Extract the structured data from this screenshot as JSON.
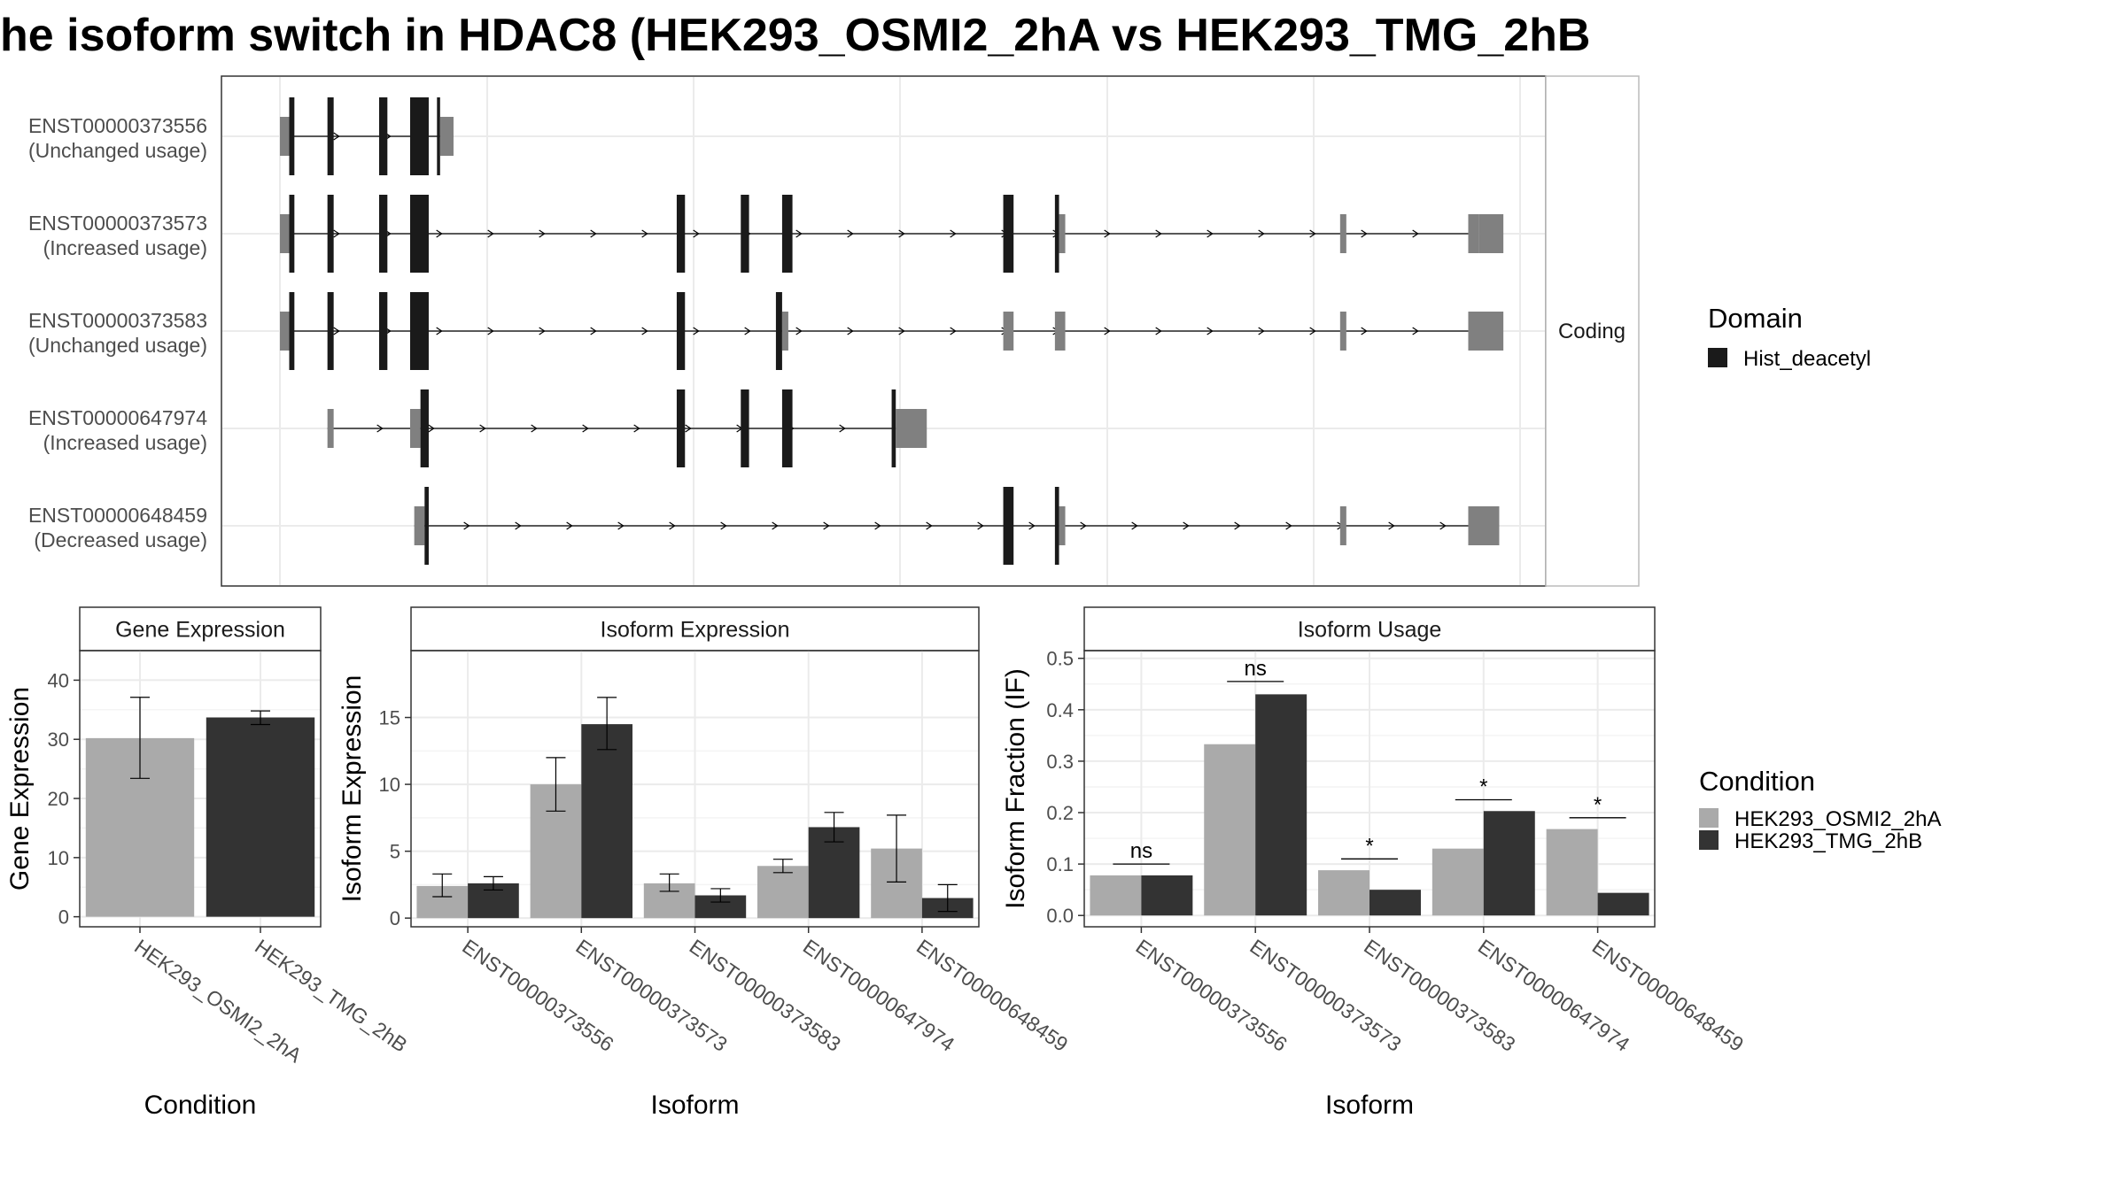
{
  "title": "he isoform switch in HDAC8 (HEK293_OSMI2_2hA vs HEK293_TMG_2hB",
  "colors": {
    "osmi": "#aaaaaa",
    "tmg": "#333333",
    "domain": "#1a1a1a",
    "utr": "#808080",
    "grid": "#ebebeb",
    "panel_border": "#333333",
    "strip_fill": "#ffffff"
  },
  "structure": {
    "facet_label": "Coding",
    "genome_ticks": [
      0,
      1,
      2,
      3,
      4,
      5,
      6
    ],
    "isoforms": [
      {
        "id": "ENST00000373556",
        "usage": "(Unchanged usage)",
        "span": [
          0.2,
          8.4
        ],
        "features": [
          {
            "s": 0.0,
            "e": 0.45,
            "k": "utr"
          },
          {
            "s": 0.45,
            "e": 0.7,
            "k": "cds"
          },
          {
            "s": 2.3,
            "e": 2.6,
            "k": "cds"
          },
          {
            "s": 4.8,
            "e": 5.2,
            "k": "cds"
          },
          {
            "s": 6.3,
            "e": 7.2,
            "k": "cds"
          },
          {
            "s": 7.6,
            "e": 7.75,
            "k": "cds"
          },
          {
            "s": 7.75,
            "e": 8.4,
            "k": "utr"
          }
        ]
      },
      {
        "id": "ENST00000373573",
        "usage": "(Increased usage)",
        "span": [
          0.2,
          57.5
        ],
        "features": [
          {
            "s": 0.0,
            "e": 0.45,
            "k": "utr"
          },
          {
            "s": 0.45,
            "e": 0.7,
            "k": "cds"
          },
          {
            "s": 2.3,
            "e": 2.6,
            "k": "cds"
          },
          {
            "s": 4.8,
            "e": 5.2,
            "k": "cds"
          },
          {
            "s": 6.3,
            "e": 7.2,
            "k": "cds"
          },
          {
            "s": 19.2,
            "e": 19.6,
            "k": "cds"
          },
          {
            "s": 22.3,
            "e": 22.7,
            "k": "cds"
          },
          {
            "s": 24.3,
            "e": 24.8,
            "k": "cds"
          },
          {
            "s": 35.0,
            "e": 35.5,
            "k": "cds"
          },
          {
            "s": 37.5,
            "e": 37.7,
            "k": "cds"
          },
          {
            "s": 37.7,
            "e": 38.0,
            "k": "utr"
          },
          {
            "s": 51.3,
            "e": 51.6,
            "k": "utr"
          },
          {
            "s": 57.5,
            "e": 58.0,
            "k": "utr"
          },
          {
            "s": 58.0,
            "e": 59.2,
            "k": "utr"
          }
        ]
      },
      {
        "id": "ENST00000373583",
        "usage": "(Unchanged usage)",
        "span": [
          0.2,
          57.5
        ],
        "features": [
          {
            "s": 0.0,
            "e": 0.45,
            "k": "utr"
          },
          {
            "s": 0.45,
            "e": 0.7,
            "k": "cds"
          },
          {
            "s": 2.3,
            "e": 2.6,
            "k": "cds"
          },
          {
            "s": 4.8,
            "e": 5.2,
            "k": "cds"
          },
          {
            "s": 6.3,
            "e": 7.2,
            "k": "cds"
          },
          {
            "s": 19.2,
            "e": 19.6,
            "k": "cds"
          },
          {
            "s": 24.0,
            "e": 24.3,
            "k": "cds"
          },
          {
            "s": 24.3,
            "e": 24.6,
            "k": "utr"
          },
          {
            "s": 35.0,
            "e": 35.5,
            "k": "utr"
          },
          {
            "s": 37.5,
            "e": 38.0,
            "k": "utr"
          },
          {
            "s": 51.3,
            "e": 51.6,
            "k": "utr"
          },
          {
            "s": 57.5,
            "e": 59.2,
            "k": "utr"
          }
        ]
      },
      {
        "id": "ENST00000647974",
        "usage": "(Increased usage)",
        "span": [
          2.3,
          29.8
        ],
        "features": [
          {
            "s": 2.3,
            "e": 2.6,
            "k": "utr"
          },
          {
            "s": 6.3,
            "e": 6.8,
            "k": "utr"
          },
          {
            "s": 6.8,
            "e": 7.2,
            "k": "cds"
          },
          {
            "s": 19.2,
            "e": 19.6,
            "k": "cds"
          },
          {
            "s": 22.3,
            "e": 22.7,
            "k": "cds"
          },
          {
            "s": 24.3,
            "e": 24.8,
            "k": "cds"
          },
          {
            "s": 29.6,
            "e": 29.8,
            "k": "cds"
          },
          {
            "s": 29.8,
            "e": 31.3,
            "k": "utr"
          }
        ]
      },
      {
        "id": "ENST00000648459",
        "usage": "(Decreased usage)",
        "span": [
          6.5,
          57.5
        ],
        "features": [
          {
            "s": 6.5,
            "e": 7.0,
            "k": "utr"
          },
          {
            "s": 7.0,
            "e": 7.2,
            "k": "cds"
          },
          {
            "s": 35.0,
            "e": 35.5,
            "k": "cds"
          },
          {
            "s": 37.5,
            "e": 37.7,
            "k": "cds"
          },
          {
            "s": 37.7,
            "e": 38.0,
            "k": "utr"
          },
          {
            "s": 51.3,
            "e": 51.6,
            "k": "utr"
          },
          {
            "s": 57.5,
            "e": 59.0,
            "k": "utr"
          }
        ]
      }
    ]
  },
  "domain_legend": {
    "title": "Domain",
    "items": [
      {
        "label": "Hist_deacetyl"
      }
    ]
  },
  "condition_legend": {
    "title": "Condition",
    "items": [
      {
        "label": "HEK293_OSMI2_2hA"
      },
      {
        "label": "HEK293_TMG_2hB"
      }
    ]
  },
  "chart_data": [
    {
      "type": "bar",
      "title": "Gene Expression",
      "xlabel": "Condition",
      "ylabel": "Gene Expression",
      "ylim": [
        -1.7,
        45
      ],
      "yticks": [
        0,
        10,
        20,
        30,
        40
      ],
      "categories": [
        "HEK293_OSMI2_2hA",
        "HEK293_TMG_2hB"
      ],
      "values": [
        30.2,
        33.7
      ],
      "errors": [
        [
          23.4,
          37.1
        ],
        [
          32.5,
          34.8
        ]
      ]
    },
    {
      "type": "bar",
      "title": "Isoform Expression",
      "xlabel": "Isoform",
      "ylabel": "Isoform Expression",
      "ylim": [
        -0.65,
        20
      ],
      "yticks": [
        0,
        5,
        10,
        15
      ],
      "categories": [
        "ENST00000373556",
        "ENST00000373573",
        "ENST00000373583",
        "ENST00000647974",
        "ENST00000648459"
      ],
      "series": [
        {
          "name": "HEK293_OSMI2_2hA",
          "values": [
            2.4,
            10.0,
            2.6,
            3.9,
            5.2
          ],
          "errors": [
            [
              1.6,
              3.3
            ],
            [
              8.0,
              12.0
            ],
            [
              2.0,
              3.3
            ],
            [
              3.4,
              4.4
            ],
            [
              2.7,
              7.7
            ]
          ]
        },
        {
          "name": "HEK293_TMG_2hB",
          "values": [
            2.6,
            14.5,
            1.7,
            6.8,
            1.5
          ],
          "errors": [
            [
              2.1,
              3.1
            ],
            [
              12.6,
              16.5
            ],
            [
              1.2,
              2.2
            ],
            [
              5.7,
              7.9
            ],
            [
              0.5,
              2.5
            ]
          ]
        }
      ]
    },
    {
      "type": "bar",
      "title": "Isoform Usage",
      "xlabel": "Isoform",
      "ylabel": "Isoform Fraction (IF)",
      "ylim": [
        -0.022,
        0.515
      ],
      "yticks": [
        0.0,
        0.1,
        0.2,
        0.3,
        0.4,
        0.5
      ],
      "ytick_labels": [
        "0.0",
        "0.1",
        "0.2",
        "0.3",
        "0.4",
        "0.5"
      ],
      "categories": [
        "ENST00000373556",
        "ENST00000373573",
        "ENST00000373583",
        "ENST00000647974",
        "ENST00000648459"
      ],
      "series": [
        {
          "name": "HEK293_OSMI2_2hA",
          "values": [
            0.078,
            0.333,
            0.088,
            0.13,
            0.168
          ]
        },
        {
          "name": "HEK293_TMG_2hB",
          "values": [
            0.078,
            0.43,
            0.05,
            0.203,
            0.044
          ]
        }
      ],
      "significance": [
        {
          "label": "ns",
          "y": 0.1
        },
        {
          "label": "ns",
          "y": 0.455
        },
        {
          "label": "*",
          "y": 0.11
        },
        {
          "label": "*",
          "y": 0.225
        },
        {
          "label": "*",
          "y": 0.19
        }
      ]
    }
  ]
}
